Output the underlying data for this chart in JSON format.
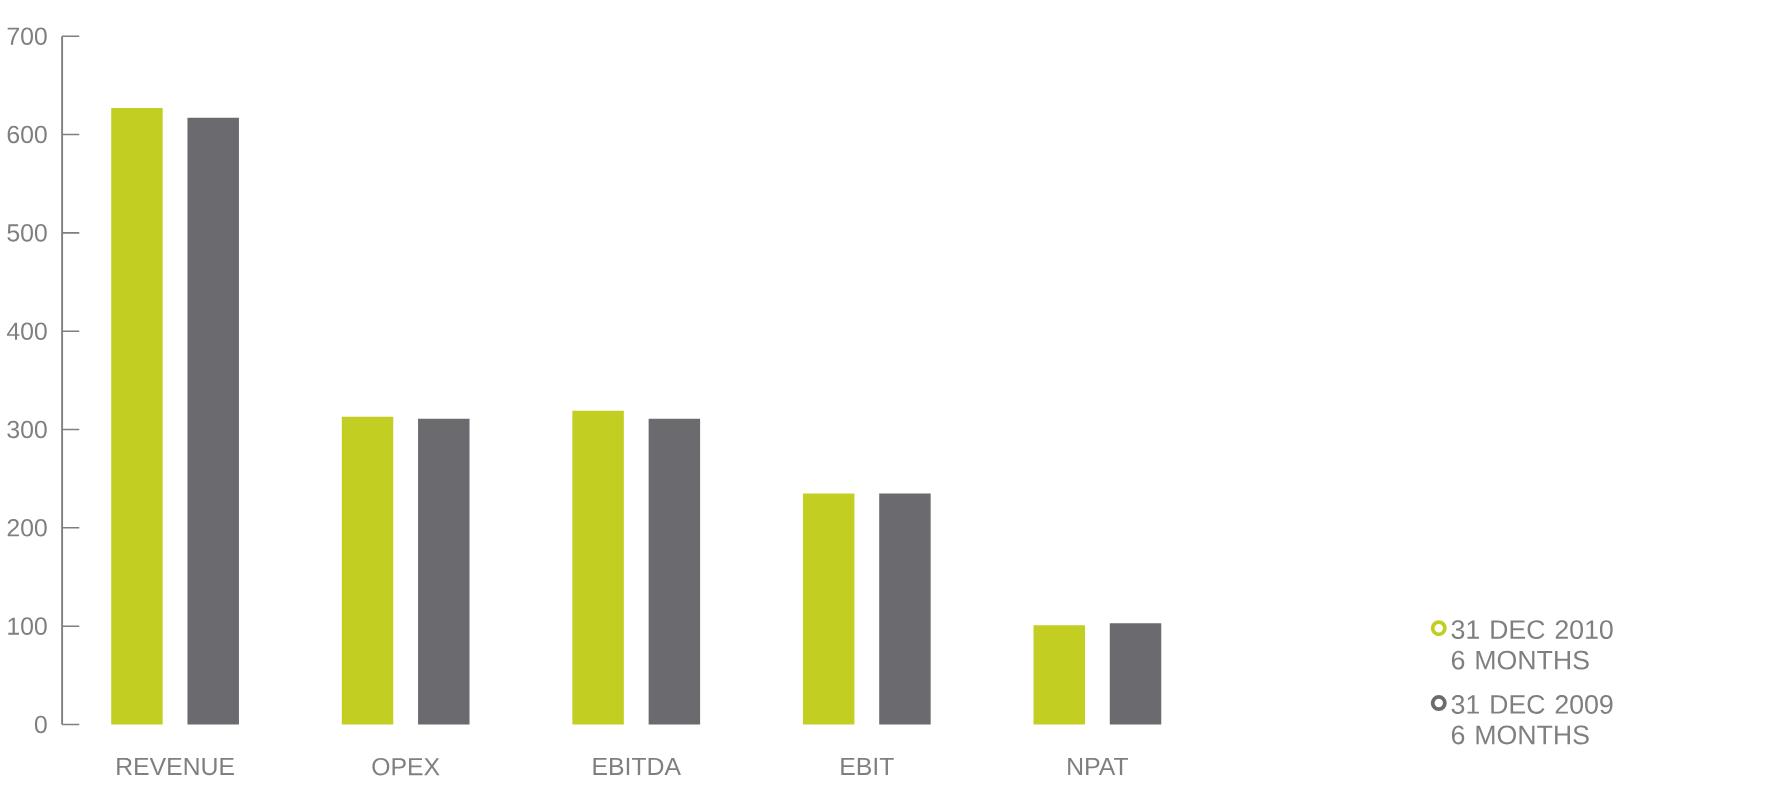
{
  "chart_data": {
    "type": "bar",
    "categories": [
      "REVENUE",
      "OPEX",
      "EBITDA",
      "EBIT",
      "NPAT"
    ],
    "series": [
      {
        "name": "31 DEC 2010 6 MONTHS",
        "color": "#c2cf22",
        "values": [
          627,
          313,
          319,
          235,
          101
        ]
      },
      {
        "name": "31 DEC 2009 6 MONTHS",
        "color": "#6b6b6f",
        "values": [
          617,
          311,
          311,
          235,
          103
        ]
      }
    ],
    "ylim": [
      0,
      700
    ],
    "yticks": [
      0,
      100,
      200,
      300,
      400,
      500,
      600,
      700
    ],
    "legend": "bottom right",
    "grid": false
  }
}
